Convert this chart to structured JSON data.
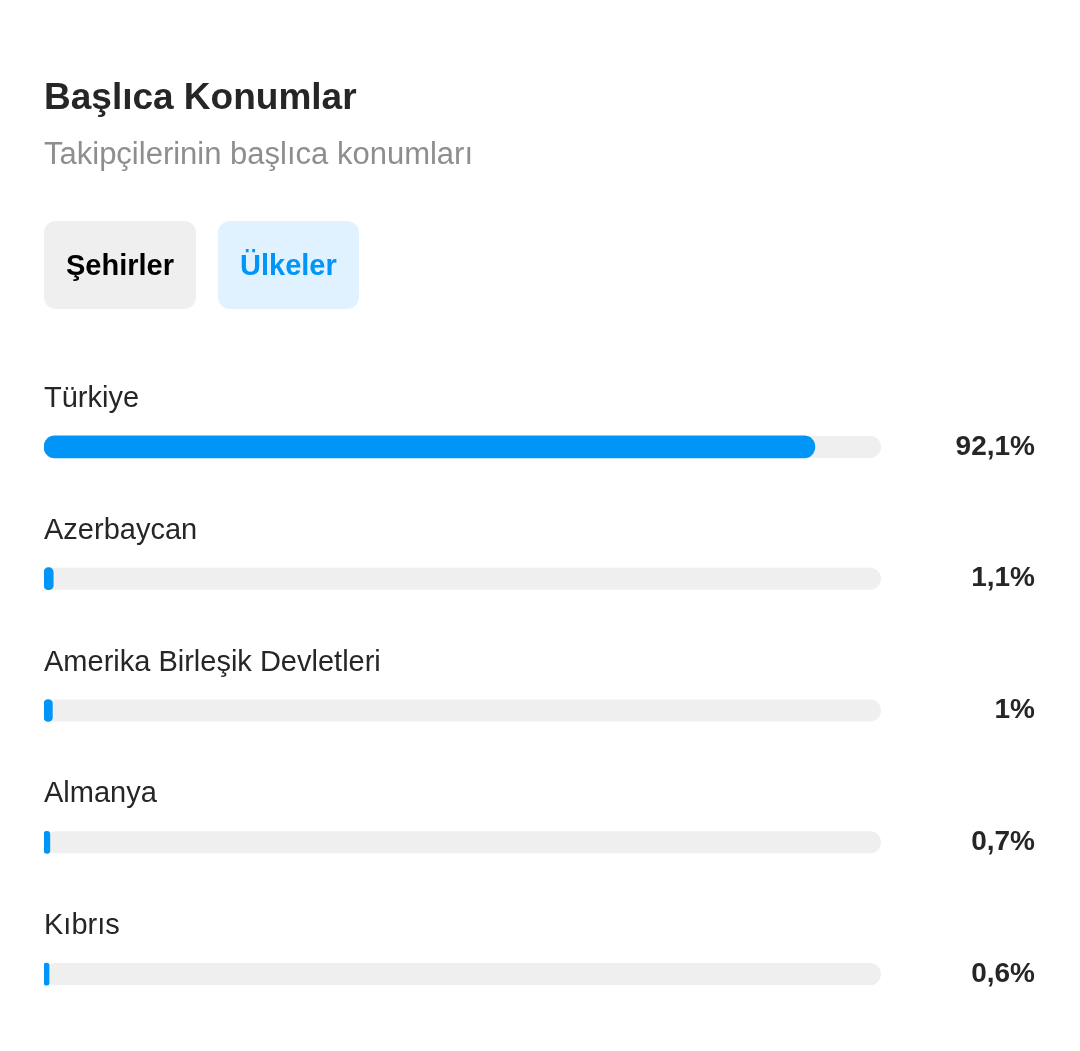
{
  "chart_data": {
    "type": "bar",
    "orientation": "horizontal",
    "title": "Başlıca Konumlar",
    "subtitle": "Takipçilerinin başlıca konumları",
    "annotations": [
      "Şehirler",
      "Ülkeler"
    ],
    "categories": [
      "Türkiye",
      "Azerbaycan",
      "Amerika Birleşik Devletleri",
      "Almanya",
      "Kıbrıs"
    ],
    "values": [
      92.1,
      1.1,
      1,
      0.7,
      0.6
    ],
    "value_labels": [
      "92,1%",
      "1,1%",
      "1%",
      "0,7%",
      "0,6%"
    ],
    "color": "#0095f6",
    "xlim": [
      0,
      100
    ],
    "tick_labels": false
  }
}
